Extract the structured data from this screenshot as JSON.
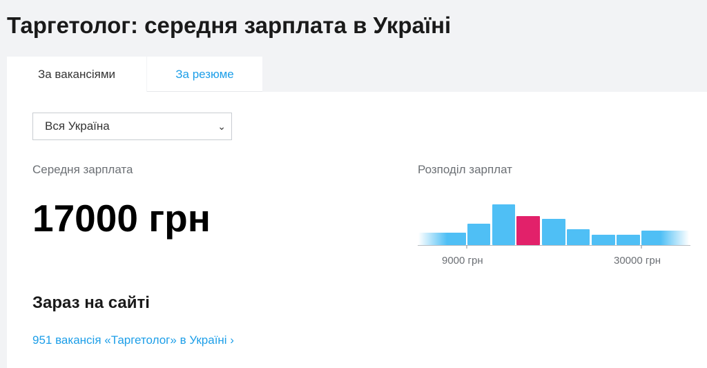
{
  "title": "Таргетолог: середня зарплата в Україні",
  "tabs": [
    {
      "label": "За вакансіями",
      "active": true
    },
    {
      "label": "За резюме",
      "active": false
    }
  ],
  "region_select": {
    "value": "Вся Україна"
  },
  "average": {
    "label": "Середня зарплата",
    "value": "17000 грн"
  },
  "distribution": {
    "label": "Розподіл зарплат"
  },
  "now_on_site": {
    "heading": "Зараз на сайті",
    "link": "951 вакансія «Таргетолог» в Україні ›"
  },
  "chart_data": {
    "type": "bar",
    "relative_heights": [
      18,
      31,
      59,
      42,
      38,
      23,
      15,
      15,
      21
    ],
    "highlight_index": 3,
    "tick_labels": [
      "9000 грн",
      "30000 грн"
    ],
    "colors": {
      "bar": "#4fbff5",
      "highlight": "#e2216a",
      "axis": "#b9bdc2"
    }
  }
}
